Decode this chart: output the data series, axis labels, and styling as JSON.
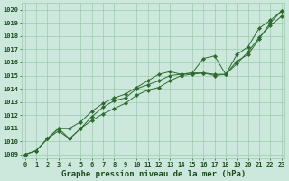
{
  "title": "Graphe pression niveau de la mer (hPa)",
  "hours": [
    0,
    1,
    2,
    3,
    4,
    5,
    6,
    7,
    8,
    9,
    10,
    11,
    12,
    13,
    14,
    15,
    16,
    17,
    18,
    19,
    20,
    21,
    22,
    23
  ],
  "line1": [
    1009.0,
    1009.3,
    1010.2,
    1010.8,
    1010.2,
    1011.0,
    1011.6,
    1012.1,
    1012.5,
    1012.9,
    1013.5,
    1013.9,
    1014.1,
    1014.6,
    1015.0,
    1015.1,
    1015.2,
    1015.0,
    1015.1,
    1015.9,
    1016.8,
    1017.9,
    1018.8,
    1019.5
  ],
  "line2": [
    1009.0,
    1009.3,
    1010.2,
    1011.0,
    1011.0,
    1011.5,
    1012.3,
    1012.9,
    1013.3,
    1013.6,
    1014.1,
    1014.6,
    1015.1,
    1015.3,
    1015.1,
    1015.2,
    1016.3,
    1016.5,
    1015.1,
    1016.6,
    1017.2,
    1018.6,
    1019.2,
    1019.9
  ],
  "line3": [
    1009.0,
    1009.3,
    1010.2,
    1011.0,
    1010.2,
    1011.0,
    1011.9,
    1012.6,
    1013.1,
    1013.3,
    1014.0,
    1014.3,
    1014.6,
    1015.0,
    1015.1,
    1015.2,
    1015.2,
    1015.1,
    1015.1,
    1016.1,
    1016.6,
    1017.8,
    1019.0,
    1019.9
  ],
  "ylim_min": 1008.7,
  "ylim_max": 1020.5,
  "yticks": [
    1009,
    1010,
    1011,
    1012,
    1013,
    1014,
    1015,
    1016,
    1017,
    1018,
    1019,
    1020
  ],
  "line_color": "#2d6a2d",
  "bg_color": "#cce8dc",
  "grid_color": "#9ec9ae",
  "title_color": "#1a4d1a",
  "label_fontsize": 5.0,
  "title_fontsize": 6.5
}
